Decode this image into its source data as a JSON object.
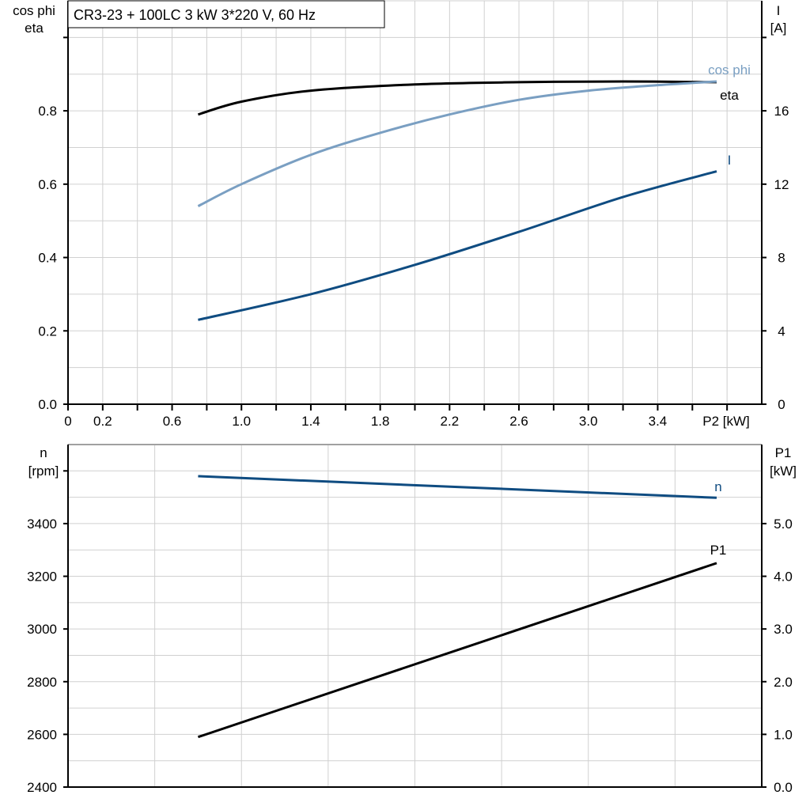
{
  "chart_data": [
    {
      "type": "line",
      "title": "CR3-23 + 100LC   3 kW   3*220 V, 60 Hz",
      "xlabel": "P2 [kW]",
      "ylabel_left": [
        "cos phi",
        "eta"
      ],
      "ylabel_right": [
        "I",
        "[A]"
      ],
      "xlim": [
        0,
        4.0
      ],
      "ylim_left": [
        0,
        1.1
      ],
      "ylim_right": [
        0,
        22
      ],
      "grid": true,
      "x_ticks": [
        "0",
        "0.2",
        "0.6",
        "1.0",
        "1.4",
        "1.8",
        "2.2",
        "2.6",
        "3.0",
        "3.4"
      ],
      "x_tick_values": [
        0,
        0.2,
        0.6,
        1.0,
        1.4,
        1.8,
        2.2,
        2.6,
        3.0,
        3.4
      ],
      "y_left_ticks": [
        "0.0",
        "0.2",
        "0.4",
        "0.6",
        "0.8"
      ],
      "y_right_ticks": [
        "0",
        "4",
        "8",
        "12",
        "16"
      ],
      "series": [
        {
          "name": "eta",
          "axis": "left",
          "color": "#000000",
          "x": [
            0.75,
            1.0,
            1.4,
            2.0,
            2.6,
            3.2,
            3.74
          ],
          "y": [
            0.79,
            0.825,
            0.855,
            0.872,
            0.878,
            0.88,
            0.878
          ]
        },
        {
          "name": "cos phi",
          "axis": "left",
          "color": "#7a9fc2",
          "x": [
            0.75,
            1.0,
            1.4,
            1.8,
            2.2,
            2.6,
            3.0,
            3.4,
            3.74
          ],
          "y": [
            0.54,
            0.6,
            0.68,
            0.74,
            0.79,
            0.83,
            0.855,
            0.87,
            0.88
          ]
        },
        {
          "name": "I",
          "axis": "right",
          "color": "#0f4c81",
          "x": [
            0.75,
            1.4,
            2.0,
            2.6,
            3.2,
            3.74
          ],
          "y": [
            4.6,
            6.0,
            7.6,
            9.4,
            11.3,
            12.7
          ]
        }
      ]
    },
    {
      "type": "line",
      "xlim": [
        0,
        4.0
      ],
      "ylabel_left": [
        "n",
        "[rpm]"
      ],
      "ylabel_right": [
        "P1",
        "[kW]"
      ],
      "ylim_left": [
        2400,
        3700
      ],
      "ylim_right": [
        0,
        6.5
      ],
      "grid": true,
      "y_left_ticks": [
        "2400",
        "2600",
        "2800",
        "3000",
        "3200",
        "3400"
      ],
      "y_right_ticks": [
        "0.0",
        "1.0",
        "2.0",
        "3.0",
        "4.0",
        "5.0"
      ],
      "series": [
        {
          "name": "n",
          "axis": "left",
          "color": "#0f4c81",
          "x": [
            0.75,
            3.74
          ],
          "y": [
            3580,
            3498
          ]
        },
        {
          "name": "P1",
          "axis": "right",
          "color": "#000000",
          "x": [
            0.75,
            3.74
          ],
          "y": [
            0.95,
            4.25
          ]
        }
      ]
    }
  ]
}
